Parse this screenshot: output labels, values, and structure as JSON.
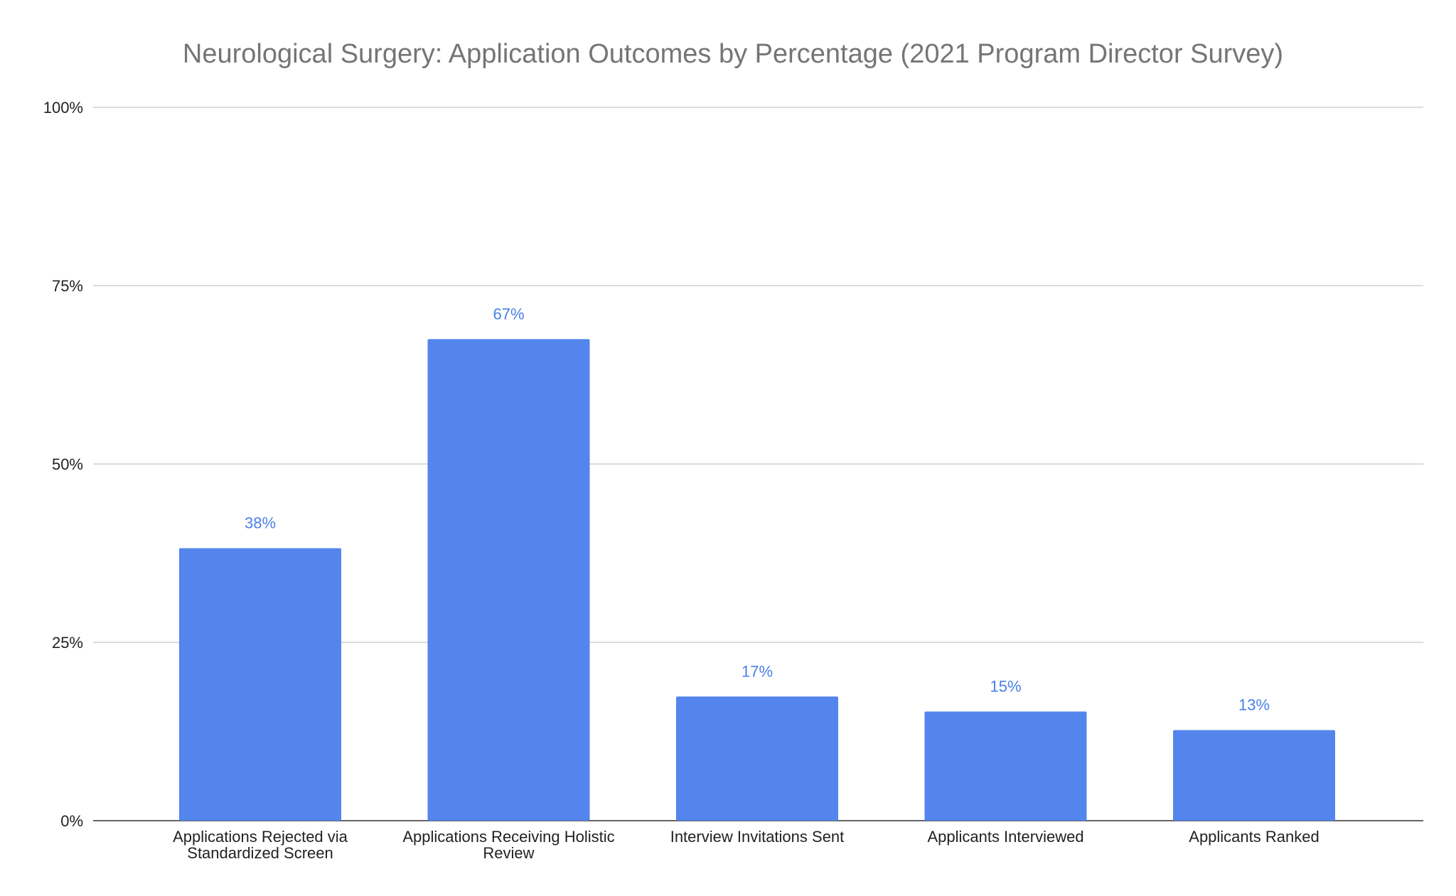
{
  "chart_data": {
    "type": "bar",
    "title": "Neurological Surgery: Application Outcomes by Percentage (2021 Program Director Survey)",
    "xlabel": "",
    "ylabel": "",
    "categories": [
      [
        "Applications Rejected via",
        "Standardized Screen"
      ],
      [
        "Applications Receiving Holistic",
        "Review"
      ],
      [
        "Interview Invitations Sent"
      ],
      [
        "Applicants Interviewed"
      ],
      [
        "Applicants Ranked"
      ]
    ],
    "values": [
      38.2,
      67.5,
      17.4,
      15.3,
      12.7
    ],
    "data_labels": [
      "38%",
      "67%",
      "17%",
      "15%",
      "13%"
    ],
    "ylim": [
      0,
      100
    ],
    "yticks": [
      0,
      25,
      50,
      75,
      100
    ],
    "ytick_labels": [
      "0%",
      "25%",
      "50%",
      "75%",
      "100%"
    ],
    "grid": true,
    "legend": "none",
    "bar_color": "#5385ed"
  }
}
